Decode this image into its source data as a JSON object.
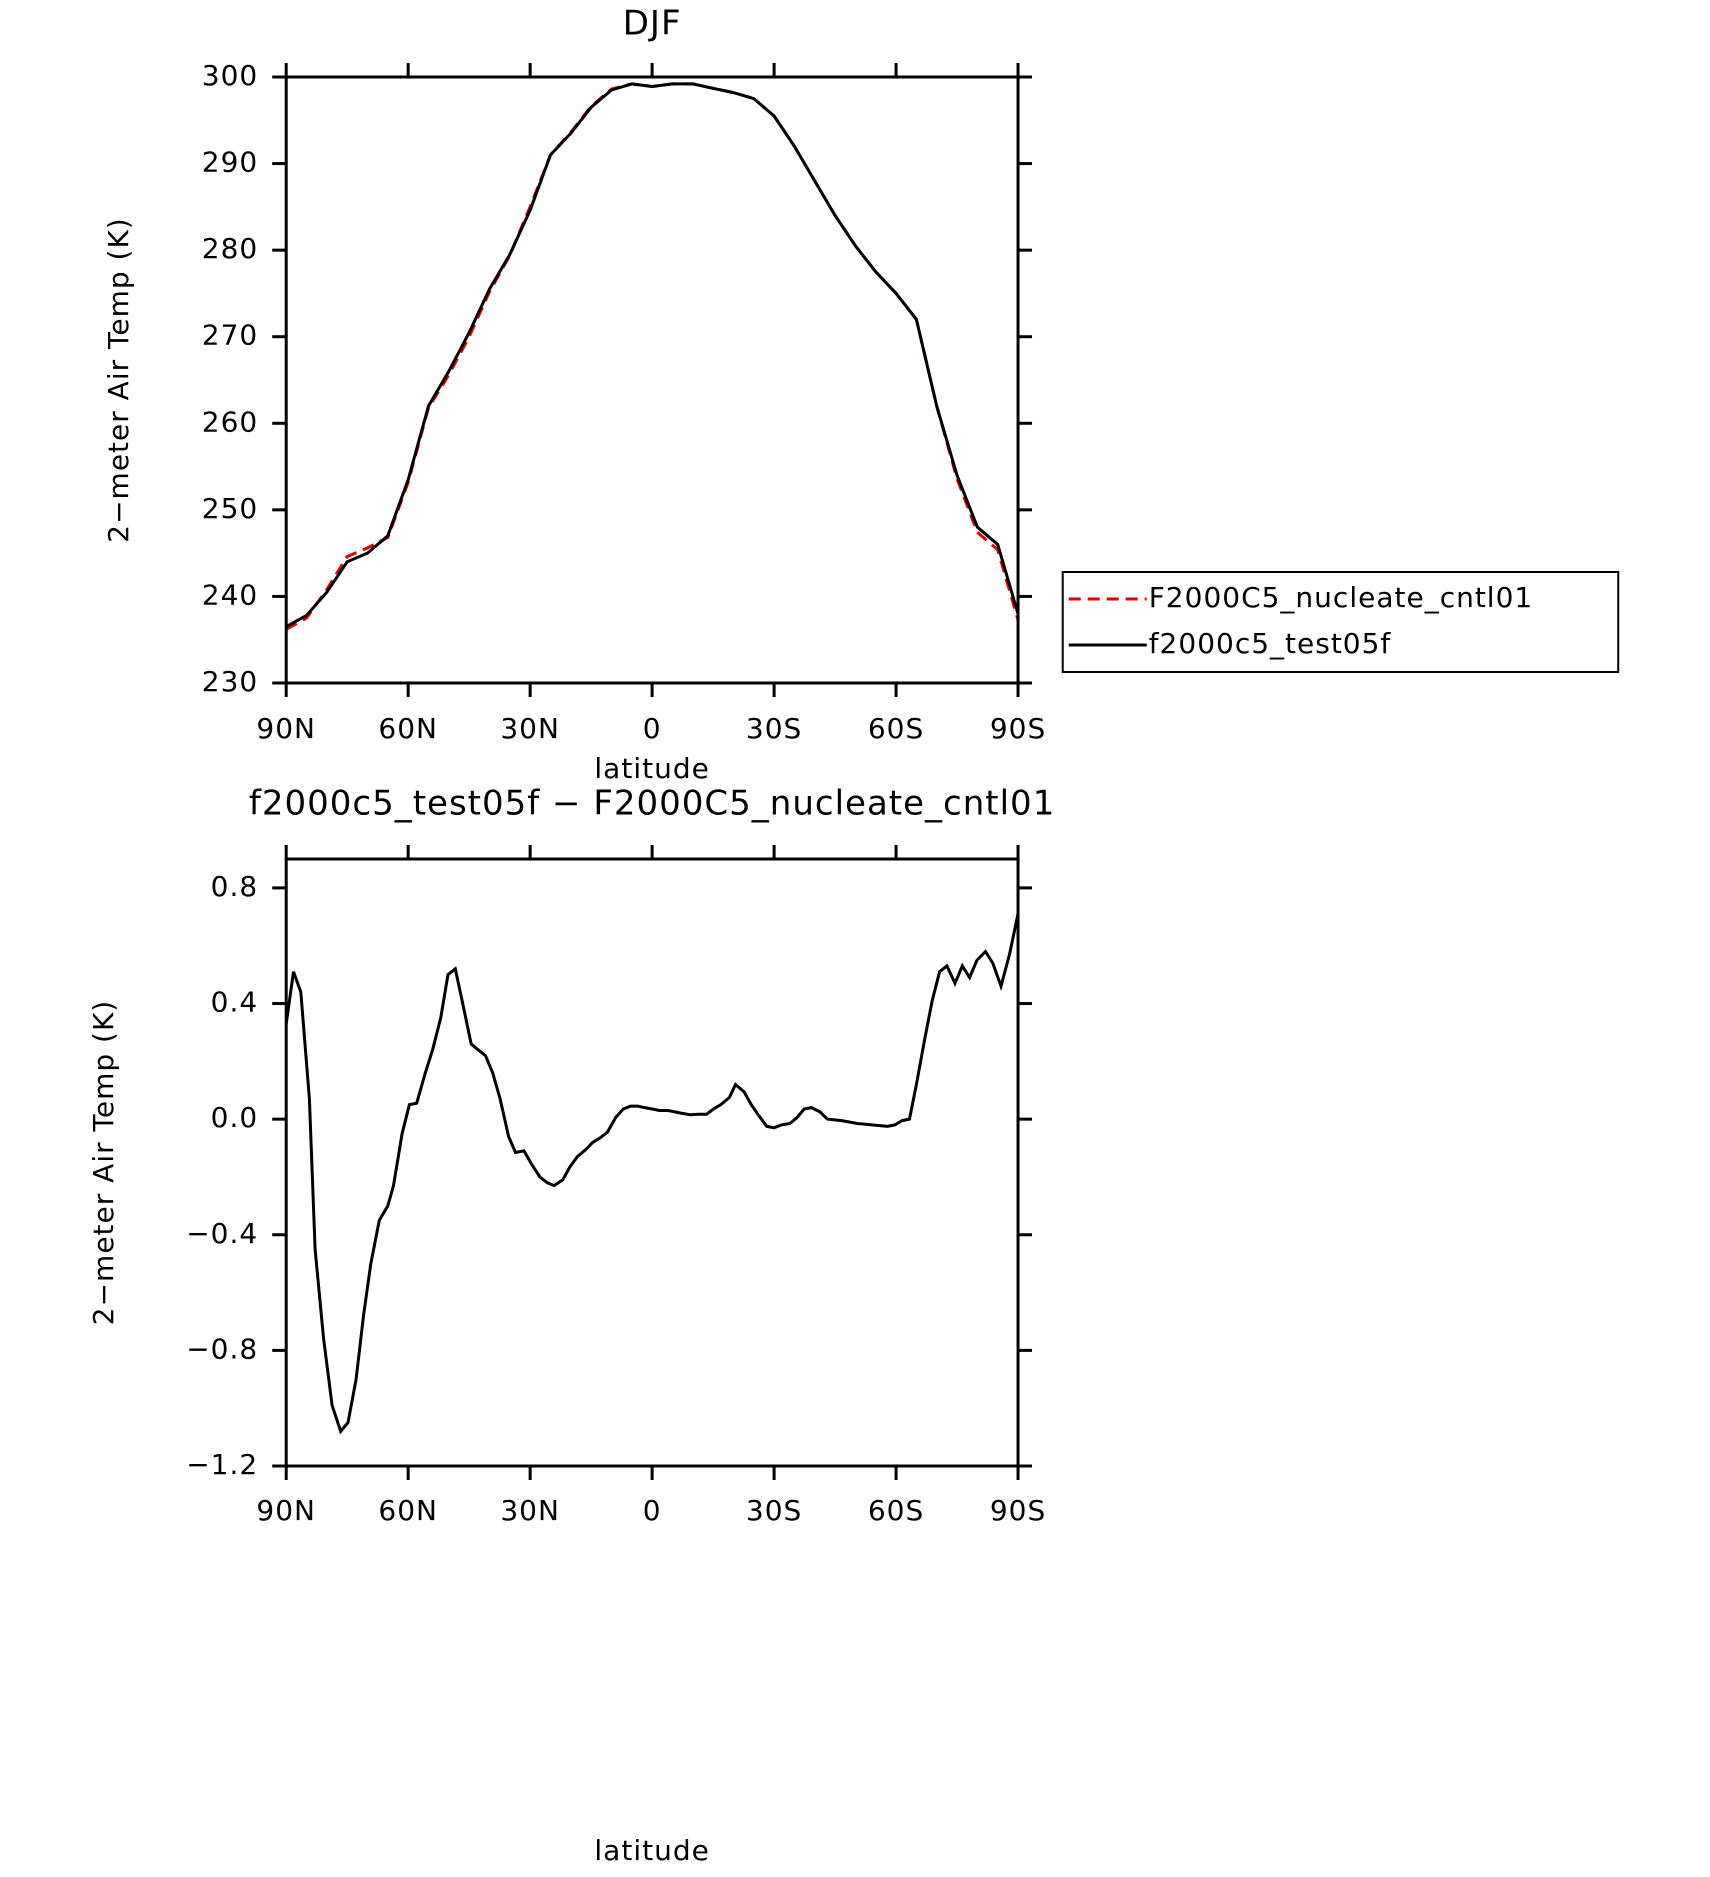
{
  "chart_data": [
    {
      "type": "line",
      "title": "DJF",
      "x_label": "latitude",
      "y_label": "2−meter Air Temp (K)",
      "x": [
        90,
        85,
        80,
        75,
        70,
        65,
        60,
        55,
        50,
        45,
        40,
        35,
        30,
        25,
        20,
        15,
        10,
        5,
        0,
        -5,
        -10,
        -15,
        -20,
        -25,
        -30,
        -35,
        -40,
        -45,
        -50,
        -55,
        -60,
        -65,
        -70,
        -75,
        -80,
        -85,
        -90
      ],
      "series": [
        {
          "name": "F2000C5_nucleate_cntl01",
          "color": "#e00000",
          "line_style": "dashed",
          "values": [
            236.2,
            237.5,
            240.8,
            244.6,
            245.6,
            246.8,
            253.2,
            261.8,
            265.6,
            270,
            275.2,
            279.4,
            285,
            291,
            293.6,
            296.6,
            298.6,
            299.2,
            298.9,
            299.2,
            299.2,
            298.7,
            298.2,
            297.5,
            295.5,
            292,
            288,
            284,
            280.5,
            277.5,
            275,
            272,
            262,
            253.6,
            247.4,
            245.4,
            237.3
          ]
        },
        {
          "name": "f2000c5_test05f",
          "color": "#000000",
          "line_style": "solid",
          "values": [
            236.5,
            237.8,
            240.5,
            244,
            245,
            247,
            253.5,
            262,
            266,
            270.5,
            275.5,
            279.5,
            284.6,
            291,
            293.5,
            296.5,
            298.5,
            299.2,
            298.9,
            299.2,
            299.2,
            298.7,
            298.2,
            297.5,
            295.5,
            292,
            288,
            284,
            280.5,
            277.5,
            275,
            272,
            262,
            254,
            248,
            246,
            238
          ]
        }
      ],
      "xlim": [
        90,
        -90
      ],
      "xticks": [
        {
          "value": 90,
          "label": "90N"
        },
        {
          "value": 60,
          "label": "60N"
        },
        {
          "value": 30,
          "label": "30N"
        },
        0,
        {
          "value": -30,
          "label": "30S"
        },
        {
          "value": -60,
          "label": "60S"
        },
        {
          "value": -90,
          "label": "90S"
        }
      ],
      "ylim": [
        230,
        300
      ],
      "yticks": [
        230,
        240,
        250,
        260,
        270,
        280,
        290,
        300
      ],
      "legend": "right"
    },
    {
      "type": "line",
      "title": "f2000c5_test05f − F2000C5_nucleate_cntl01",
      "x_label": "latitude",
      "y_label": "2−meter Air Temp (K)",
      "x": [
        90,
        88.2,
        86.4,
        84.3,
        82.9,
        80.8,
        78.7,
        76.6,
        74.8,
        72.8,
        71,
        69.2,
        67.1,
        65,
        63.6,
        61.5,
        59.7,
        57.9,
        55.8,
        54,
        52,
        50.2,
        48.4,
        46.6,
        44.5,
        42.8,
        41,
        39.2,
        37.4,
        35.3,
        33.6,
        31.5,
        29.7,
        27.6,
        25.8,
        24.1,
        22,
        20.2,
        18.4,
        16.3,
        14.6,
        12.8,
        11,
        8.9,
        7.1,
        5.3,
        3.6,
        1.8,
        0,
        -1.8,
        -3.9,
        -5.6,
        -7.4,
        -9.5,
        -11.3,
        -13.4,
        -15.1,
        -16.9,
        -19,
        -20.5,
        -22.6,
        -24.4,
        -26.1,
        -28.2,
        -30,
        -31.8,
        -33.9,
        -35.6,
        -37.4,
        -39.2,
        -41.3,
        -43.1,
        -46.6,
        -50.5,
        -54,
        -57.9,
        -59.7,
        -61.5,
        -63.3,
        -65,
        -67.1,
        -68.9,
        -70.7,
        -72.5,
        -74.5,
        -76.3,
        -78.1,
        -79.9,
        -82,
        -83.8,
        -85.8,
        -87.9,
        -90
      ],
      "color": "#000000",
      "values": [
        0.33,
        0.51,
        0.44,
        0.07,
        -0.45,
        -0.76,
        -0.99,
        -1.08,
        -1.05,
        -0.9,
        -0.68,
        -0.5,
        -0.35,
        -0.3,
        -0.23,
        -0.05,
        0.05,
        0.055,
        0.16,
        0.24,
        0.35,
        0.5,
        0.52,
        0.4,
        0.26,
        0.24,
        0.22,
        0.16,
        0.07,
        -0.06,
        -0.115,
        -0.11,
        -0.155,
        -0.2,
        -0.22,
        -0.23,
        -0.21,
        -0.165,
        -0.13,
        -0.105,
        -0.08,
        -0.065,
        -0.045,
        0.007,
        0.035,
        0.045,
        0.045,
        0.04,
        0.035,
        0.03,
        0.03,
        0.025,
        0.02,
        0.015,
        0.017,
        0.017,
        0.035,
        0.05,
        0.075,
        0.12,
        0.095,
        0.05,
        0.015,
        -0.025,
        -0.03,
        -0.02,
        -0.015,
        0.005,
        0.035,
        0.04,
        0.025,
        0,
        -0.005,
        -0.015,
        -0.02,
        -0.025,
        -0.02,
        -0.005,
        0,
        0.12,
        0.28,
        0.41,
        0.51,
        0.53,
        0.47,
        0.53,
        0.49,
        0.55,
        0.58,
        0.54,
        0.46,
        0.57,
        0.71
      ],
      "xlim": [
        90,
        -90
      ],
      "xticks": [
        {
          "value": 90,
          "label": "90N"
        },
        {
          "value": 60,
          "label": "60N"
        },
        {
          "value": 30,
          "label": "30N"
        },
        0,
        {
          "value": -30,
          "label": "30S"
        },
        {
          "value": -60,
          "label": "60S"
        },
        {
          "value": -90,
          "label": "90S"
        }
      ],
      "ylim": [
        -1.2,
        0.9
      ],
      "yticks": [
        {
          "value": -1.2,
          "label": "−1.2"
        },
        {
          "value": -0.8,
          "label": "−0.8"
        },
        {
          "value": -0.4,
          "label": "−0.4"
        },
        {
          "value": 0,
          "label": "0.0"
        },
        0.4,
        0.8
      ]
    }
  ]
}
